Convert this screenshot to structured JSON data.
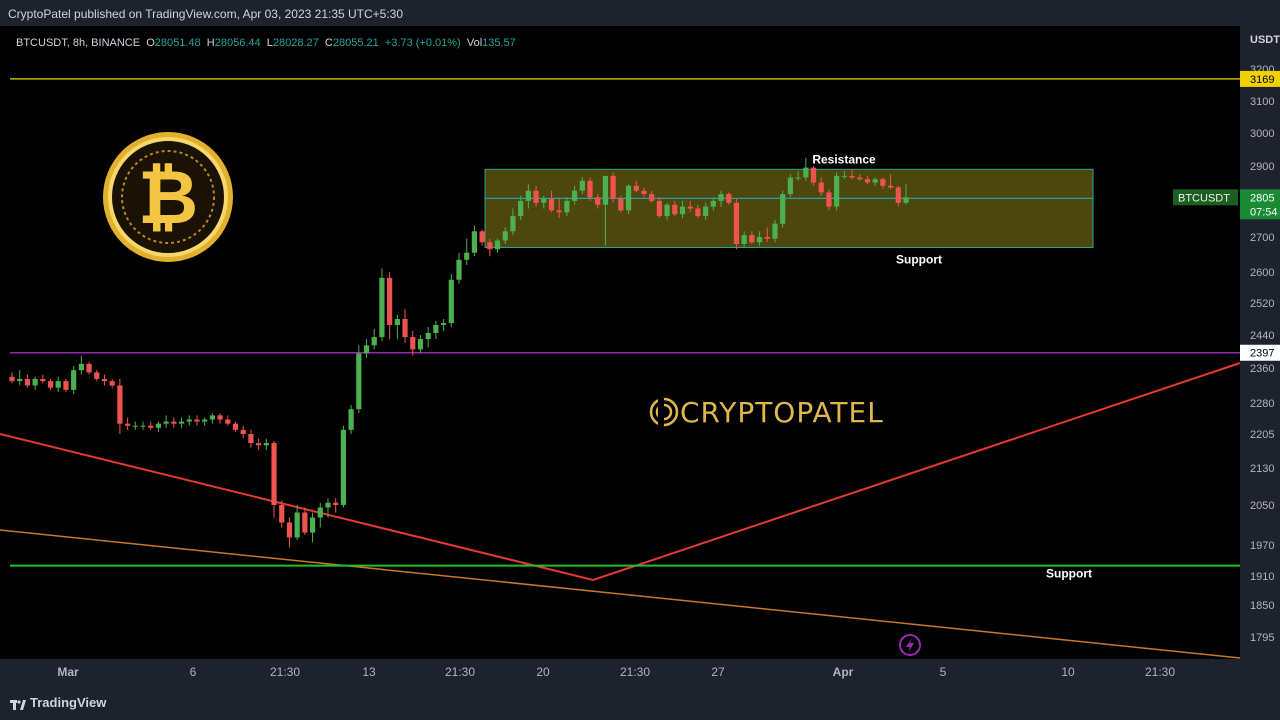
{
  "header": {
    "published": "CryptoPatel published on TradingView.com, Apr 03, 2023 21:35 UTC+5:30"
  },
  "footer": {
    "brand": "TradingView"
  },
  "legend": {
    "symbol": "BTCUSDT, 8h, BINANCE",
    "o_label": "O",
    "o": "28051.48",
    "h_label": "H",
    "h": "28056.44",
    "l_label": "L",
    "l": "28028.27",
    "c_label": "C",
    "c": "28055.21",
    "change": "+3.73 (+0.01%)",
    "vol_label": "Vol",
    "vol": "135.57"
  },
  "watermark": "CRYPTOPATEL",
  "colors": {
    "up": "#26a69a",
    "up_body": "#4caf50",
    "down": "#ef5350",
    "purple": "#9c27b0",
    "yellow": "#c8b400",
    "green_line": "#22c02b",
    "red_line": "#e53935",
    "orange_line": "#c67a2a",
    "zone": "#5b5310"
  },
  "chart_data": {
    "type": "candlestick",
    "symbol": "BTCUSDT",
    "timeframe": "8h",
    "exchange": "BINANCE",
    "currency_label": "USDT",
    "y_ticks": [
      32000,
      31000,
      30000,
      29000,
      28000,
      27000,
      26000,
      25200,
      24400,
      23600,
      22800,
      22050,
      21300,
      20500,
      19700,
      19100,
      18500,
      17950
    ],
    "y_tick_labels": [
      "3200",
      "3100",
      "3000",
      "2900",
      "2800",
      "2700",
      "2600",
      "2520",
      "2440",
      "2360",
      "2280",
      "2205",
      "2130",
      "2050",
      "1970",
      "1910",
      "1850",
      "1795"
    ],
    "x_ticks": [
      "Mar",
      "6",
      "21:30",
      "13",
      "21:30",
      "20",
      "21:30",
      "27",
      "Apr",
      "5",
      "10",
      "21:30"
    ],
    "horizontal_lines": [
      {
        "value": 31690,
        "label": "3169",
        "color": "yellow"
      },
      {
        "value": 23970,
        "label": "2397",
        "color": "purple"
      },
      {
        "value": 19300,
        "color": "green_line"
      }
    ],
    "zone": {
      "top": 28900,
      "mid": 28020,
      "bottom": 26700,
      "label_top": "Resistance",
      "label_bottom": "Support"
    },
    "support_label": "Support",
    "price_tag": {
      "symbol": "BTCUSDT",
      "value": "2805",
      "countdown": "07:54"
    },
    "candles": [
      [
        23400,
        23500,
        23250,
        23300
      ],
      [
        23300,
        23550,
        23200,
        23350
      ],
      [
        23350,
        23450,
        23150,
        23200
      ],
      [
        23200,
        23400,
        23100,
        23350
      ],
      [
        23350,
        23450,
        23250,
        23300
      ],
      [
        23300,
        23350,
        23100,
        23150
      ],
      [
        23150,
        23400,
        23050,
        23300
      ],
      [
        23300,
        23350,
        23050,
        23100
      ],
      [
        23100,
        23650,
        23000,
        23550
      ],
      [
        23550,
        23900,
        23450,
        23700
      ],
      [
        23700,
        23750,
        23450,
        23500
      ],
      [
        23500,
        23550,
        23300,
        23350
      ],
      [
        23350,
        23450,
        23200,
        23300
      ],
      [
        23300,
        23350,
        23150,
        23200
      ],
      [
        23200,
        23350,
        22050,
        22300
      ],
      [
        22300,
        22450,
        22150,
        22250
      ],
      [
        22250,
        22350,
        22150,
        22250
      ],
      [
        22250,
        22350,
        22150,
        22250
      ],
      [
        22250,
        22350,
        22150,
        22200
      ],
      [
        22200,
        22350,
        22100,
        22300
      ],
      [
        22300,
        22500,
        22200,
        22350
      ],
      [
        22350,
        22450,
        22200,
        22300
      ],
      [
        22300,
        22450,
        22200,
        22350
      ],
      [
        22350,
        22500,
        22250,
        22400
      ],
      [
        22400,
        22500,
        22250,
        22350
      ],
      [
        22350,
        22450,
        22250,
        22400
      ],
      [
        22400,
        22550,
        22300,
        22500
      ],
      [
        22500,
        22550,
        22300,
        22400
      ],
      [
        22400,
        22500,
        22250,
        22300
      ],
      [
        22300,
        22350,
        22100,
        22150
      ],
      [
        22150,
        22250,
        21950,
        22050
      ],
      [
        22050,
        22150,
        21750,
        21850
      ],
      [
        21850,
        21950,
        21700,
        21800
      ],
      [
        21800,
        21950,
        21700,
        21850
      ],
      [
        21850,
        21900,
        20250,
        20500
      ],
      [
        20500,
        20600,
        20050,
        20150
      ],
      [
        20150,
        20250,
        19650,
        19850
      ],
      [
        19850,
        20500,
        19800,
        20350
      ],
      [
        20350,
        20450,
        19900,
        19950
      ],
      [
        19950,
        20350,
        19750,
        20250
      ],
      [
        20250,
        20550,
        20050,
        20450
      ],
      [
        20450,
        20650,
        20250,
        20550
      ],
      [
        20550,
        20650,
        20350,
        20500
      ],
      [
        20500,
        22250,
        20450,
        22150
      ],
      [
        22150,
        22750,
        22050,
        22650
      ],
      [
        22650,
        24150,
        22550,
        23950
      ],
      [
        23950,
        24300,
        23850,
        24150
      ],
      [
        24150,
        24550,
        24050,
        24350
      ],
      [
        24350,
        26100,
        24250,
        25850
      ],
      [
        25850,
        26000,
        24300,
        24650
      ],
      [
        24650,
        24900,
        24300,
        24800
      ],
      [
        24800,
        25050,
        24200,
        24350
      ],
      [
        24350,
        24500,
        23900,
        24050
      ],
      [
        24050,
        24400,
        23950,
        24300
      ],
      [
        24300,
        24600,
        24100,
        24450
      ],
      [
        24450,
        24750,
        24300,
        24650
      ],
      [
        24650,
        24800,
        24500,
        24700
      ],
      [
        24700,
        25950,
        24600,
        25800
      ],
      [
        25800,
        26550,
        25700,
        26350
      ],
      [
        26350,
        26950,
        26200,
        26550
      ],
      [
        26550,
        27300,
        26450,
        27150
      ],
      [
        27150,
        27200,
        26750,
        26850
      ],
      [
        26850,
        26950,
        26450,
        26650
      ],
      [
        26650,
        26950,
        26550,
        26900
      ],
      [
        26900,
        27250,
        26800,
        27150
      ],
      [
        27150,
        27750,
        27050,
        27550
      ],
      [
        27550,
        28100,
        27450,
        27950
      ],
      [
        27950,
        28450,
        27750,
        28250
      ],
      [
        28250,
        28400,
        27800,
        27900
      ],
      [
        27900,
        28100,
        27750,
        28000
      ],
      [
        28000,
        28250,
        27650,
        27700
      ],
      [
        27700,
        28000,
        27500,
        27650
      ],
      [
        27650,
        28050,
        27550,
        27950
      ],
      [
        27950,
        28400,
        27850,
        28250
      ],
      [
        28250,
        28650,
        28150,
        28550
      ],
      [
        28550,
        28650,
        27950,
        28050
      ],
      [
        28050,
        28150,
        27750,
        27850
      ],
      [
        27850,
        28650,
        26750,
        28700
      ],
      [
        28700,
        28800,
        27900,
        28000
      ],
      [
        28000,
        28100,
        27650,
        27700
      ],
      [
        27700,
        28450,
        27600,
        28400
      ],
      [
        28400,
        28550,
        28200,
        28250
      ],
      [
        28250,
        28350,
        28050,
        28150
      ],
      [
        28150,
        28250,
        27900,
        27950
      ],
      [
        27950,
        28050,
        27500,
        27550
      ],
      [
        27550,
        27900,
        27450,
        27850
      ],
      [
        27850,
        27950,
        27550,
        27600
      ],
      [
        27600,
        27950,
        27500,
        27800
      ],
      [
        27800,
        27950,
        27650,
        27750
      ],
      [
        27750,
        27850,
        27500,
        27550
      ],
      [
        27550,
        27900,
        27450,
        27800
      ],
      [
        27800,
        28050,
        27700,
        27950
      ],
      [
        27950,
        28250,
        27800,
        28150
      ],
      [
        28150,
        28200,
        27850,
        27900
      ],
      [
        27900,
        28000,
        26650,
        26800
      ],
      [
        26800,
        27150,
        26700,
        27050
      ],
      [
        27050,
        27150,
        26800,
        26850
      ],
      [
        26850,
        27150,
        26750,
        27000
      ],
      [
        27000,
        27250,
        26850,
        26950
      ],
      [
        26950,
        27450,
        26850,
        27350
      ],
      [
        27350,
        28250,
        27250,
        28150
      ],
      [
        28150,
        28750,
        28050,
        28650
      ],
      [
        28650,
        28850,
        28550,
        28650
      ],
      [
        28650,
        29250,
        28550,
        28950
      ],
      [
        28950,
        29000,
        28400,
        28500
      ],
      [
        28500,
        28650,
        28100,
        28200
      ],
      [
        28200,
        28300,
        27700,
        27800
      ],
      [
        27800,
        28800,
        27700,
        28700
      ],
      [
        28700,
        28850,
        28600,
        28700
      ],
      [
        28700,
        28900,
        28600,
        28650
      ],
      [
        28650,
        28750,
        28550,
        28600
      ],
      [
        28600,
        28700,
        28450,
        28500
      ],
      [
        28500,
        28650,
        28400,
        28600
      ],
      [
        28600,
        28650,
        28300,
        28400
      ],
      [
        28400,
        28750,
        28300,
        28350
      ],
      [
        28350,
        28400,
        27800,
        27900
      ],
      [
        27900,
        28450,
        27850,
        28051
      ]
    ]
  }
}
